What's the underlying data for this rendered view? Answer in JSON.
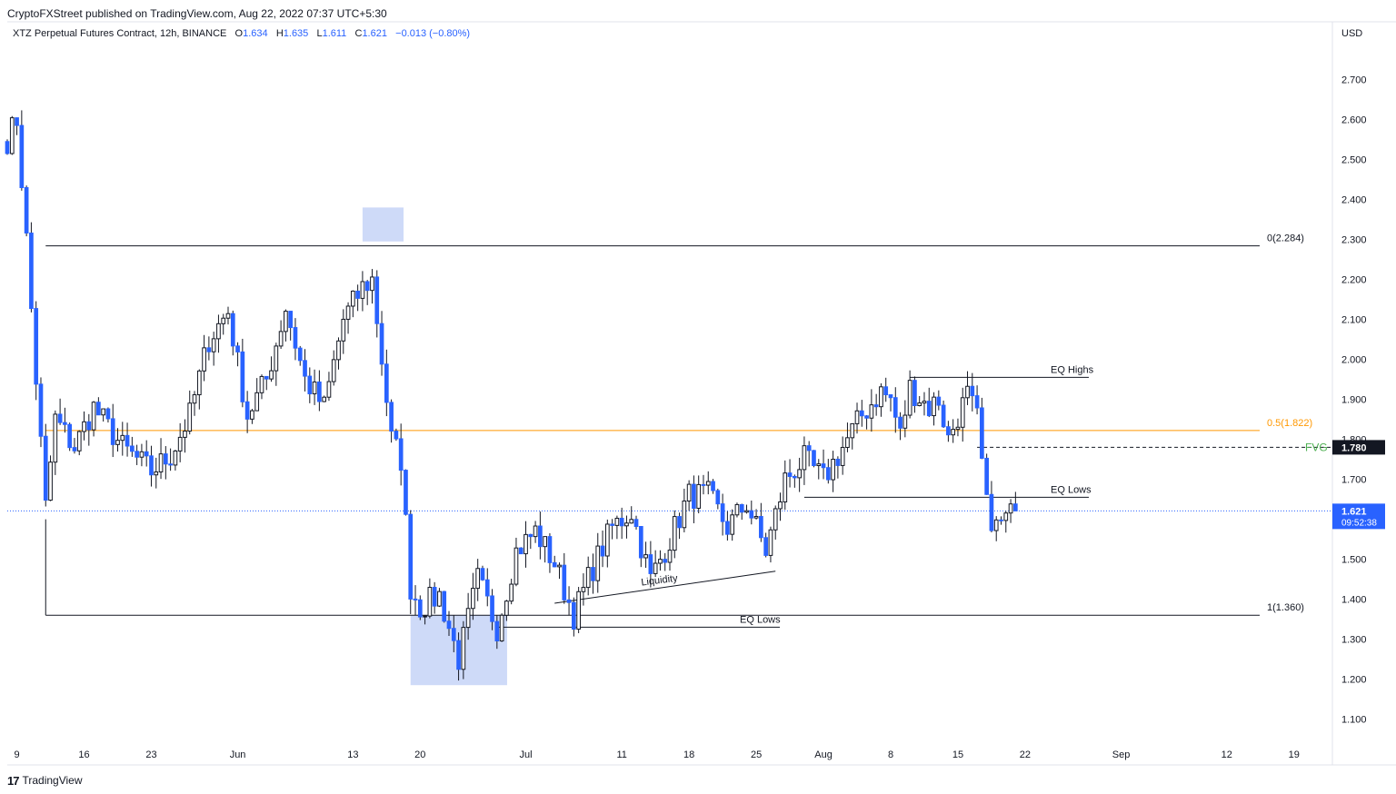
{
  "header": {
    "published": "CryptoFXStreet published on TradingView.com, Aug 22, 2022 07:37 UTC+5:30"
  },
  "legend": {
    "symbol": "XTZ Perpetual Futures Contract, 12h, BINANCE",
    "o_label": "O",
    "o": "1.634",
    "h_label": "H",
    "h": "1.635",
    "l_label": "L",
    "l": "1.611",
    "c_label": "C",
    "c": "1.621",
    "change": "−0.013 (−0.80%)"
  },
  "axis": {
    "currency": "USD",
    "price_ticks": [
      "2.700",
      "2.600",
      "2.500",
      "2.400",
      "2.300",
      "2.200",
      "2.100",
      "2.000",
      "1.900",
      "1.800",
      "1.700",
      "1.600",
      "1.500",
      "1.400",
      "1.300",
      "1.200",
      "1.100"
    ],
    "date_ticks": [
      "9",
      "16",
      "23",
      "Jun",
      "13",
      "20",
      "Jul",
      "11",
      "18",
      "25",
      "Aug",
      "8",
      "15",
      "22",
      "Sep",
      "12",
      "19"
    ],
    "current_price": "1.621",
    "countdown": "09:52:38",
    "fvg_price": "1.780"
  },
  "annotations": {
    "fib_0": "0(2.284)",
    "fib_05": "0.5(1.822)",
    "fib_1": "1(1.360)",
    "eq_highs": "EQ Highs",
    "eq_lows_right": "EQ Lows",
    "eq_lows_left": "EQ Lows",
    "fvg": "FVG",
    "liquidity": "Liquidity"
  },
  "footer": {
    "brand": "TradingView"
  },
  "colors": {
    "up_candle": "#ffffff",
    "down_candle": "#2962ff",
    "fib_mid": "#ff9800",
    "fvg_label": "#4caf50",
    "highlight_box": "#c5d3f7",
    "current_price_badge": "#2962ff",
    "fvg_badge": "#131722"
  },
  "chart_data": {
    "type": "candlestick",
    "title": "XTZ Perpetual Futures Contract, 12h, BINANCE",
    "ylabel": "USD",
    "ylim": [
      1.04,
      2.79
    ],
    "x_start": "2022-05-08",
    "x_end": "2022-09-23",
    "timeframe": "12h",
    "levels": [
      {
        "name": "0(2.284)",
        "value": 2.284
      },
      {
        "name": "0.5(1.822)",
        "value": 1.822
      },
      {
        "name": "1(1.360)",
        "value": 1.36
      },
      {
        "name": "FVG",
        "value": 1.78
      },
      {
        "name": "EQ Highs",
        "value": 1.955
      },
      {
        "name": "EQ Lows",
        "value": 1.655
      },
      {
        "name": "EQ Lows",
        "value": 1.33
      }
    ],
    "anchors": [
      [
        "2022-05-08",
        2.55
      ],
      [
        "2022-05-09",
        2.6
      ],
      [
        "2022-05-10",
        2.3
      ],
      [
        "2022-05-11",
        1.95
      ],
      [
        "2022-05-12",
        1.63
      ],
      [
        "2022-05-13",
        1.85
      ],
      [
        "2022-05-15",
        1.78
      ],
      [
        "2022-05-17",
        1.88
      ],
      [
        "2022-05-20",
        1.78
      ],
      [
        "2022-05-23",
        1.72
      ],
      [
        "2022-05-25",
        1.76
      ],
      [
        "2022-05-27",
        1.86
      ],
      [
        "2022-05-29",
        2.05
      ],
      [
        "2022-05-31",
        2.12
      ],
      [
        "2022-06-02",
        1.86
      ],
      [
        "2022-06-04",
        1.95
      ],
      [
        "2022-06-06",
        2.13
      ],
      [
        "2022-06-08",
        1.95
      ],
      [
        "2022-06-10",
        1.88
      ],
      [
        "2022-06-12",
        2.1
      ],
      [
        "2022-06-14",
        2.18
      ],
      [
        "2022-06-15",
        2.2
      ],
      [
        "2022-06-16",
        2.0
      ],
      [
        "2022-06-17",
        1.8
      ],
      [
        "2022-06-18",
        1.75
      ],
      [
        "2022-06-19",
        1.43
      ],
      [
        "2022-06-20",
        1.38
      ],
      [
        "2022-06-22",
        1.41
      ],
      [
        "2022-06-24",
        1.25
      ],
      [
        "2022-06-26",
        1.45
      ],
      [
        "2022-06-28",
        1.33
      ],
      [
        "2022-06-30",
        1.52
      ],
      [
        "2022-07-02",
        1.57
      ],
      [
        "2022-07-04",
        1.49
      ],
      [
        "2022-07-06",
        1.36
      ],
      [
        "2022-07-08",
        1.48
      ],
      [
        "2022-07-10",
        1.58
      ],
      [
        "2022-07-12",
        1.62
      ],
      [
        "2022-07-14",
        1.45
      ],
      [
        "2022-07-16",
        1.55
      ],
      [
        "2022-07-18",
        1.66
      ],
      [
        "2022-07-20",
        1.66
      ],
      [
        "2022-07-22",
        1.58
      ],
      [
        "2022-07-24",
        1.64
      ],
      [
        "2022-07-26",
        1.52
      ],
      [
        "2022-07-28",
        1.7
      ],
      [
        "2022-07-30",
        1.75
      ],
      [
        "2022-08-01",
        1.7
      ],
      [
        "2022-08-03",
        1.78
      ],
      [
        "2022-08-05",
        1.86
      ],
      [
        "2022-08-07",
        1.92
      ],
      [
        "2022-08-08",
        1.9
      ],
      [
        "2022-08-09",
        1.81
      ],
      [
        "2022-08-10",
        1.93
      ],
      [
        "2022-08-12",
        1.88
      ],
      [
        "2022-08-13",
        1.9
      ],
      [
        "2022-08-14",
        1.8
      ],
      [
        "2022-08-15",
        1.86
      ],
      [
        "2022-08-16",
        1.91
      ],
      [
        "2022-08-17",
        1.85
      ],
      [
        "2022-08-18",
        1.63
      ],
      [
        "2022-08-19",
        1.58
      ],
      [
        "2022-08-20",
        1.6
      ],
      [
        "2022-08-21",
        1.621
      ]
    ]
  }
}
